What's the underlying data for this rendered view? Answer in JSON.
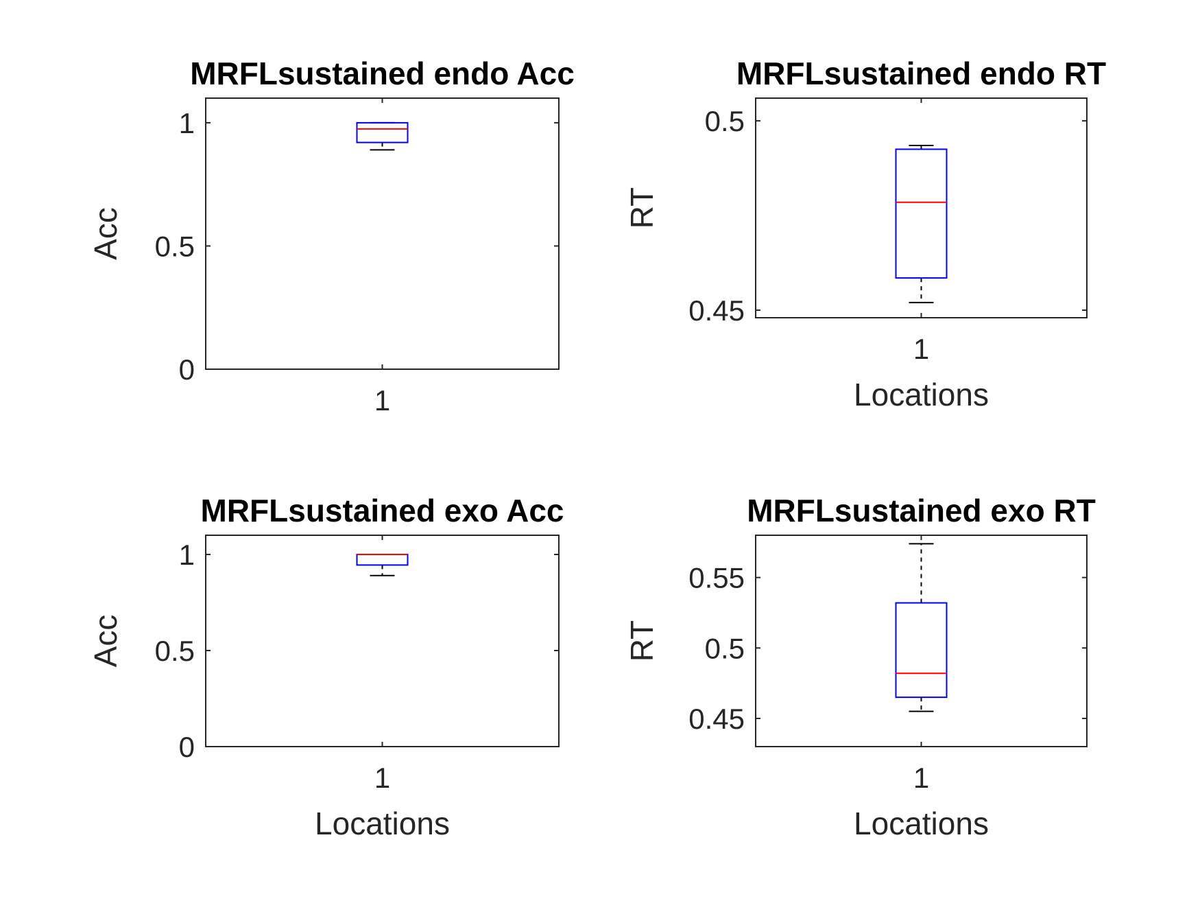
{
  "chart_data": [
    {
      "type": "box",
      "title": "MRFLsustained endo Acc",
      "xlabel": "",
      "ylabel": "Acc",
      "categories": [
        "1"
      ],
      "ylim": [
        0,
        1.1
      ],
      "yticks": [
        0,
        0.5,
        1
      ],
      "ytick_labels": [
        "0",
        "0.5",
        "1"
      ],
      "boxes": [
        {
          "category": "1",
          "whisker_low": 0.89,
          "q1": 0.92,
          "median": 0.975,
          "q3": 1.0,
          "whisker_high": 1.0
        }
      ]
    },
    {
      "type": "box",
      "title": "MRFLsustained endo RT",
      "xlabel": "Locations",
      "ylabel": "RT",
      "categories": [
        "1"
      ],
      "ylim": [
        0.448,
        0.506
      ],
      "yticks": [
        0.45,
        0.5
      ],
      "ytick_labels": [
        "0.45",
        "0.5"
      ],
      "boxes": [
        {
          "category": "1",
          "whisker_low": 0.452,
          "q1": 0.4585,
          "median": 0.4785,
          "q3": 0.4925,
          "whisker_high": 0.4935
        }
      ]
    },
    {
      "type": "box",
      "title": "MRFLsustained exo Acc",
      "xlabel": "Locations",
      "ylabel": "Acc",
      "categories": [
        "1"
      ],
      "ylim": [
        0,
        1.1
      ],
      "yticks": [
        0,
        0.5,
        1
      ],
      "ytick_labels": [
        "0",
        "0.5",
        "1"
      ],
      "boxes": [
        {
          "category": "1",
          "whisker_low": 0.89,
          "q1": 0.945,
          "median": 1.0,
          "q3": 1.0,
          "whisker_high": 1.0
        }
      ]
    },
    {
      "type": "box",
      "title": "MRFLsustained exo RT",
      "xlabel": "Locations",
      "ylabel": "RT",
      "categories": [
        "1"
      ],
      "ylim": [
        0.43,
        0.58
      ],
      "yticks": [
        0.45,
        0.5,
        0.55
      ],
      "ytick_labels": [
        "0.45",
        "0.5",
        "0.55"
      ],
      "boxes": [
        {
          "category": "1",
          "whisker_low": 0.455,
          "q1": 0.465,
          "median": 0.482,
          "q3": 0.532,
          "whisker_high": 0.574
        }
      ]
    }
  ],
  "colors": {
    "box": "#0000ff",
    "median": "#ff0000",
    "whisker": "#000000",
    "axes": "#262626",
    "text": "#262626",
    "title": "#000000"
  }
}
